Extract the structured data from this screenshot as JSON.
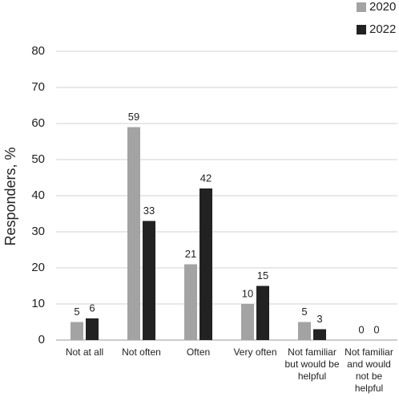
{
  "chart_data": {
    "type": "bar",
    "y_label": "Responders, %",
    "categories": [
      [
        "Not at all"
      ],
      [
        "Not often"
      ],
      [
        "Often"
      ],
      [
        "Very often"
      ],
      [
        "Not familiar",
        "but would be",
        "helpful"
      ],
      [
        "Not familiar",
        "and would",
        "not be",
        "helpful"
      ]
    ],
    "series": [
      {
        "name": "2020",
        "color": "#a3a3a3",
        "values": [
          5,
          59,
          21,
          10,
          5,
          0
        ]
      },
      {
        "name": "2022",
        "color": "#222222",
        "values": [
          6,
          33,
          42,
          15,
          3,
          0
        ]
      }
    ],
    "ylim": [
      0,
      80
    ],
    "yticks": [
      0,
      10,
      20,
      30,
      40,
      50,
      60,
      70,
      80
    ],
    "grid": true,
    "legend": "top-right"
  }
}
